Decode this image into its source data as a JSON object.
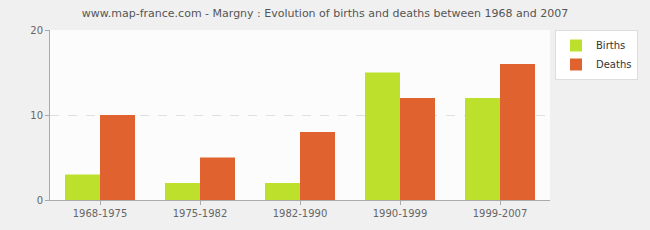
{
  "chart_data": {
    "type": "bar",
    "title": "www.map-france.com - Margny : Evolution of births and deaths between 1968 and 2007",
    "categories": [
      "1968-1975",
      "1975-1982",
      "1982-1990",
      "1990-1999",
      "1999-2007"
    ],
    "series": [
      {
        "name": "Births",
        "color": "#bde02c",
        "values": [
          3,
          2,
          2,
          15,
          12
        ]
      },
      {
        "name": "Deaths",
        "color": "#e0622f",
        "values": [
          10,
          5,
          8,
          12,
          16
        ]
      }
    ],
    "ylim": [
      0,
      20
    ],
    "yticks": [
      0,
      10,
      20
    ],
    "grid": true,
    "legend": "top right"
  }
}
